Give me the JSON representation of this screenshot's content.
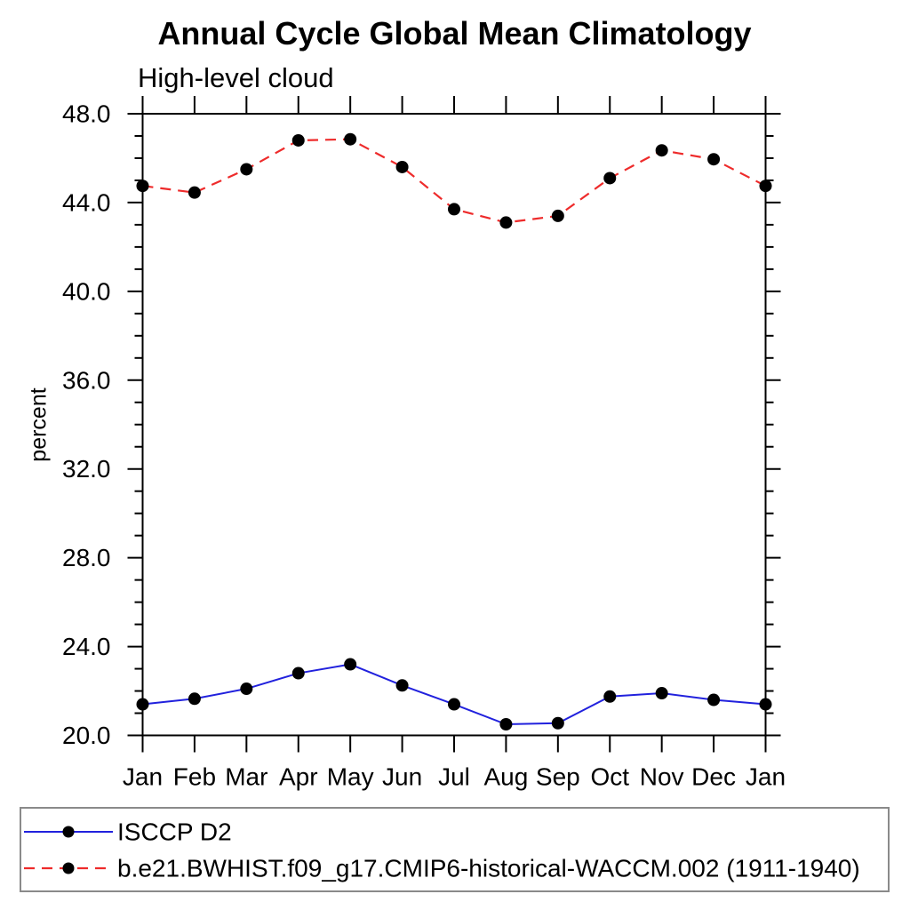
{
  "page": {
    "background_color": "#ffffff",
    "text_color": "#000000",
    "legend_border_color": "#8a8a8a"
  },
  "chart_data": {
    "type": "line",
    "title": "Annual Cycle Global Mean Climatology",
    "subtitle": "High-level cloud",
    "xlabel": "",
    "ylabel": "percent",
    "ylim": [
      20.0,
      48.0
    ],
    "y_major_step": 4,
    "y_minor_step": 1,
    "y_major_labels": [
      "20.0",
      "24.0",
      "28.0",
      "32.0",
      "36.0",
      "40.0",
      "44.0",
      "48.0"
    ],
    "grid": false,
    "legend_position": "bottom-left-box",
    "categories": [
      "Jan",
      "Feb",
      "Mar",
      "Apr",
      "May",
      "Jun",
      "Jul",
      "Aug",
      "Sep",
      "Oct",
      "Nov",
      "Dec",
      "Jan"
    ],
    "series": [
      {
        "name": "ISCCP D2",
        "color": "#2121dd",
        "line_style": "solid",
        "marker": "filled-circle",
        "marker_color": "#000000",
        "values": [
          21.4,
          21.65,
          22.1,
          22.8,
          23.2,
          22.25,
          21.4,
          20.5,
          20.55,
          21.75,
          21.9,
          21.6,
          21.4
        ]
      },
      {
        "name": "b.e21.BWHIST.f09_g17.CMIP6-historical-WACCM.002 (1911-1940)",
        "color": "#ee2b2b",
        "line_style": "dashed",
        "marker": "filled-circle",
        "marker_color": "#000000",
        "values": [
          44.75,
          44.45,
          45.5,
          46.8,
          46.85,
          45.6,
          43.7,
          43.1,
          43.4,
          45.1,
          46.35,
          45.95,
          44.75
        ]
      }
    ]
  }
}
